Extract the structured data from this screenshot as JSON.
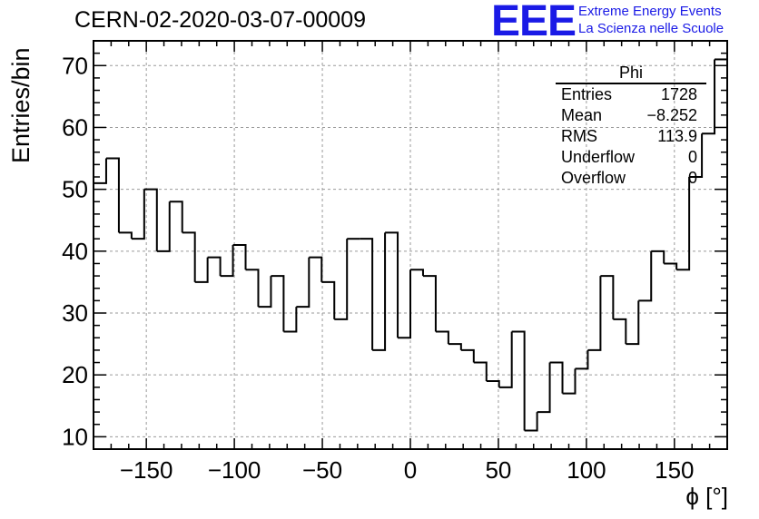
{
  "title": "CERN-02-2020-03-07-00009",
  "logo": {
    "mark": "EEE",
    "line1": "Extreme Energy Events",
    "line2": "La Scienza nelle Scuole",
    "color": "#1a1ae6"
  },
  "stats": {
    "name": "Phi",
    "rows": [
      {
        "label": "Entries",
        "value": "1728"
      },
      {
        "label": "Mean",
        "value": "−8.252"
      },
      {
        "label": "RMS",
        "value": "113.9"
      },
      {
        "label": "Underflow",
        "value": "0"
      },
      {
        "label": "Overflow",
        "value": "0"
      }
    ]
  },
  "chart_data": {
    "type": "histogram-step",
    "xlabel": "ϕ [°]",
    "ylabel": "Entries/bin",
    "xlim": [
      -180,
      180
    ],
    "ylim": [
      8,
      74
    ],
    "bin_width": 7.2,
    "bin_start": -180,
    "values": [
      51,
      55,
      43,
      42,
      50,
      40,
      48,
      43,
      35,
      39,
      36,
      41,
      37,
      31,
      36,
      27,
      31,
      39,
      35,
      29,
      42,
      42,
      24,
      43,
      26,
      37,
      36,
      27,
      25,
      24,
      22,
      19,
      18,
      27,
      11,
      14,
      22,
      17,
      21,
      24,
      36,
      29,
      25,
      32,
      40,
      38,
      37,
      52,
      59,
      71
    ],
    "xticks": [
      -150,
      -100,
      -50,
      0,
      50,
      100,
      150
    ],
    "xtick_labels": [
      "−150",
      "−100",
      "−50",
      "0",
      "50",
      "100",
      "150"
    ],
    "yticks": [
      10,
      20,
      30,
      40,
      50,
      60,
      70
    ],
    "ytick_labels": [
      "10",
      "20",
      "30",
      "40",
      "50",
      "60",
      "70"
    ],
    "grid": true,
    "line_color": "#000000"
  }
}
